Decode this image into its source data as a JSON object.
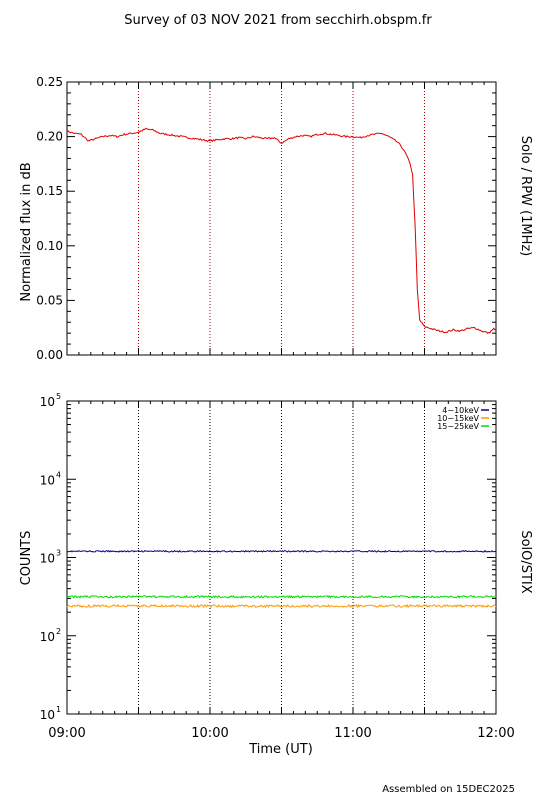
{
  "title": "Survey of 03 NOV 2021 from secchirh.obspm.fr",
  "footer": "Assembled on 15DEC2025",
  "chart_data": [
    {
      "type": "line",
      "ylabel": "Normalized flux in dB",
      "right_label": "Solo / RPW (1MHz)",
      "ylim": [
        0.0,
        0.25
      ],
      "yticks": [
        "0.00",
        "0.05",
        "0.10",
        "0.15",
        "0.20",
        "0.25"
      ],
      "xlim_hours": [
        9.0,
        12.0
      ],
      "grid": "vertical dotted lines every 30 minutes",
      "colors": {
        "series": "#dd0000",
        "grid": "#aa0000"
      },
      "series": [
        {
          "x_time": [
            "09:00",
            "09:03",
            "09:06",
            "09:09",
            "09:12",
            "09:15",
            "09:18",
            "09:21",
            "09:24",
            "09:27",
            "09:30",
            "09:33",
            "09:36",
            "09:39",
            "09:42",
            "09:45",
            "09:48",
            "09:51",
            "09:54",
            "09:57",
            "10:00",
            "10:03",
            "10:06",
            "10:09",
            "10:12",
            "10:15",
            "10:18",
            "10:21",
            "10:24",
            "10:27",
            "10:30",
            "10:33",
            "10:36",
            "10:39",
            "10:42",
            "10:45",
            "10:48",
            "10:51",
            "10:54",
            "10:57",
            "11:00",
            "11:03",
            "11:06",
            "11:09",
            "11:12",
            "11:15",
            "11:18",
            "11:20",
            "11:22",
            "11:24",
            "11:25",
            "11:26",
            "11:27",
            "11:28",
            "11:30",
            "11:33",
            "11:36",
            "11:39",
            "11:42",
            "11:45",
            "11:48",
            "11:51",
            "11:54",
            "11:57",
            "11:59",
            "12:00"
          ],
          "values": [
            0.205,
            0.203,
            0.202,
            0.196,
            0.198,
            0.2,
            0.201,
            0.2,
            0.202,
            0.203,
            0.204,
            0.207,
            0.206,
            0.203,
            0.202,
            0.201,
            0.2,
            0.199,
            0.198,
            0.197,
            0.196,
            0.197,
            0.198,
            0.198,
            0.199,
            0.198,
            0.2,
            0.199,
            0.198,
            0.199,
            0.194,
            0.198,
            0.2,
            0.201,
            0.2,
            0.202,
            0.203,
            0.202,
            0.201,
            0.2,
            0.2,
            0.199,
            0.201,
            0.202,
            0.203,
            0.2,
            0.196,
            0.192,
            0.185,
            0.175,
            0.165,
            0.12,
            0.06,
            0.032,
            0.026,
            0.024,
            0.022,
            0.021,
            0.023,
            0.022,
            0.024,
            0.025,
            0.022,
            0.02,
            0.024,
            0.022
          ]
        }
      ]
    },
    {
      "type": "line",
      "ylabel": "COUNTS",
      "right_label": "SolO/STIX",
      "yscale": "log",
      "ylim": [
        10,
        100000
      ],
      "ytick_values": [
        10,
        100,
        1000,
        10000,
        100000
      ],
      "yticks": [
        {
          "base": "10",
          "exp": "1"
        },
        {
          "base": "10",
          "exp": "2"
        },
        {
          "base": "10",
          "exp": "3"
        },
        {
          "base": "10",
          "exp": "4"
        },
        {
          "base": "10",
          "exp": "5"
        }
      ],
      "xlabel": "Time (UT)",
      "xlim_hours": [
        9.0,
        12.0
      ],
      "xticks": [
        "09:00",
        "10:00",
        "11:00",
        "12:00"
      ],
      "grid": "vertical dotted lines every 30 minutes",
      "legend_position": "top-right",
      "series": [
        {
          "name": "4−10keV",
          "color": "#00008b",
          "level": 1200,
          "noise": 0.02
        },
        {
          "name": "10−15keV",
          "color": "#ff9900",
          "level": 240,
          "noise": 0.035
        },
        {
          "name": "15−25keV",
          "color": "#00dd00",
          "level": 315,
          "noise": 0.03
        }
      ]
    }
  ]
}
